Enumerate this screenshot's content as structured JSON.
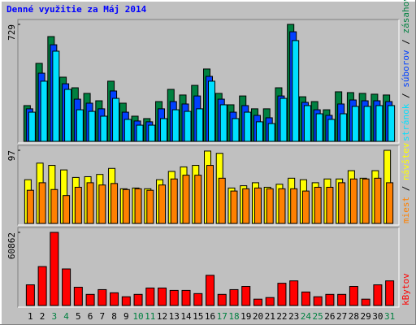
{
  "title": "Denné využitie za Máj 2014",
  "chart_data": [
    {
      "type": "bar",
      "ylim": [
        0,
        729
      ],
      "yticks": [
        729
      ],
      "legend_separator": "/",
      "series": [
        {
          "name": "zásahov",
          "color": "#008040",
          "values": [
            223,
            486,
            653,
            400,
            334,
            299,
            253,
            375,
            238,
            157,
            142,
            248,
            324,
            289,
            349,
            451,
            299,
            228,
            283,
            203,
            203,
            334,
            729,
            278,
            248,
            197,
            309,
            304,
            299,
            294,
            289
          ]
        },
        {
          "name": "súborov",
          "color": "#0040ff",
          "values": [
            203,
            425,
            602,
            359,
            263,
            238,
            203,
            314,
            182,
            127,
            122,
            203,
            248,
            233,
            283,
            405,
            263,
            182,
            223,
            162,
            147,
            283,
            683,
            243,
            197,
            162,
            233,
            258,
            253,
            253,
            248
          ]
        },
        {
          "name": "stránok",
          "color": "#00e0ff",
          "values": [
            182,
            375,
            562,
            324,
            197,
            187,
            157,
            268,
            137,
            101,
            101,
            142,
            197,
            187,
            203,
            375,
            228,
            142,
            182,
            122,
            111,
            268,
            628,
            223,
            172,
            137,
            172,
            218,
            218,
            223,
            223
          ]
        }
      ]
    },
    {
      "type": "bar",
      "ylim": [
        0,
        97
      ],
      "yticks": [
        97
      ],
      "legend_separator": "/",
      "series": [
        {
          "name": "návštev",
          "color": "#ffff00",
          "values": [
            58,
            80,
            77,
            71,
            61,
            62,
            65,
            73,
            46,
            47,
            46,
            58,
            69,
            75,
            77,
            96,
            93,
            47,
            50,
            54,
            48,
            52,
            60,
            58,
            54,
            59,
            59,
            70,
            60,
            70,
            97
          ]
        },
        {
          "name": "miest",
          "color": "#ff8000",
          "values": [
            44,
            54,
            45,
            37,
            48,
            54,
            51,
            53,
            45,
            46,
            44,
            51,
            59,
            64,
            64,
            77,
            60,
            43,
            46,
            47,
            46,
            46,
            46,
            43,
            48,
            48,
            54,
            59,
            59,
            60,
            54
          ]
        }
      ]
    },
    {
      "type": "bar",
      "ylim": [
        0,
        60862
      ],
      "yticks": [
        60862
      ],
      "categories": [
        "1",
        "2",
        "3",
        "4",
        "5",
        "6",
        "7",
        "8",
        "9",
        "10",
        "11",
        "12",
        "13",
        "14",
        "15",
        "16",
        "17",
        "18",
        "19",
        "20",
        "21",
        "22",
        "23",
        "24",
        "25",
        "26",
        "27",
        "28",
        "29",
        "30",
        "31"
      ],
      "category_colors": [
        "#000000",
        "#000000",
        "#008040",
        "#008040",
        "#000000",
        "#000000",
        "#000000",
        "#000000",
        "#000000",
        "#008040",
        "#008040",
        "#000000",
        "#000000",
        "#000000",
        "#000000",
        "#000000",
        "#008040",
        "#008040",
        "#000000",
        "#000000",
        "#000000",
        "#000000",
        "#000000",
        "#008040",
        "#008040",
        "#000000",
        "#000000",
        "#000000",
        "#000000",
        "#000000",
        "#008040"
      ],
      "series": [
        {
          "name": "kBytov",
          "color": "#ff0000",
          "values": [
            17200,
            32400,
            60862,
            30430,
            15210,
            9260,
            13230,
            10580,
            7280,
            9260,
            14550,
            14550,
            12570,
            12570,
            9920,
            25140,
            9260,
            13230,
            15880,
            5290,
            6620,
            18520,
            20510,
            11250,
            7280,
            9260,
            9260,
            15880,
            5290,
            17200,
            20510
          ]
        }
      ]
    }
  ]
}
